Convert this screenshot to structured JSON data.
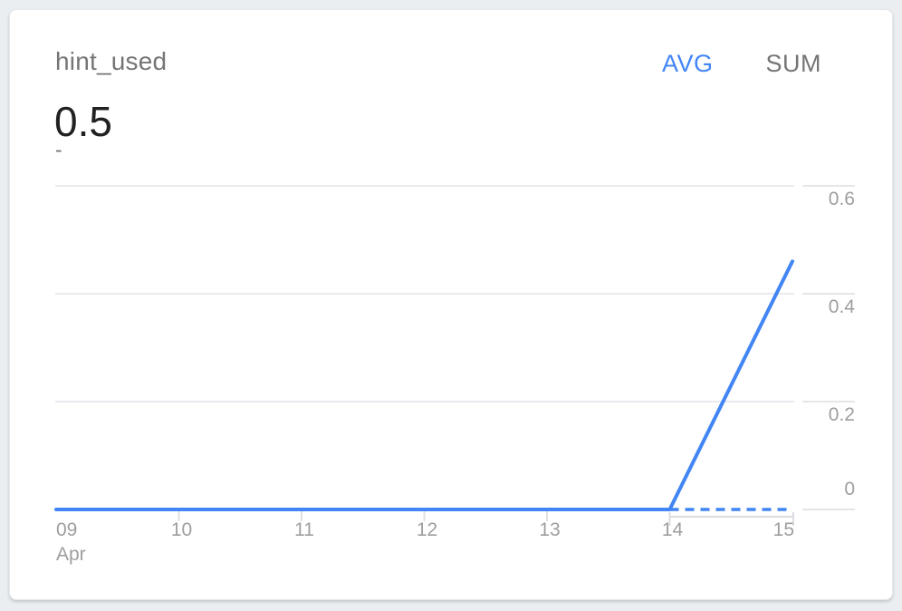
{
  "card": {
    "title": "hint_used",
    "value": "0.5",
    "delta_placeholder": "-",
    "toggle": {
      "avg_label": "AVG",
      "sum_label": "SUM",
      "active": "AVG"
    }
  },
  "colors": {
    "accent_blue": "#4285f4",
    "line_blue": "#4285f4",
    "grid": "#e8eaed",
    "right_tick": "#e4e6e8",
    "axis_tick": "#dadce0",
    "axis_label": "#9e9e9e",
    "title_gray": "#757575",
    "value_dark": "#212121",
    "card_bg": "#ffffff",
    "page_bg": "#eaeef1"
  },
  "chart_data": {
    "type": "line",
    "title": "hint_used",
    "x": [
      "09",
      "10",
      "11",
      "12",
      "13",
      "14",
      "15"
    ],
    "x_month_label": "Apr",
    "series": [
      {
        "name": "hint_used (AVG)",
        "style": "solid",
        "values": [
          0,
          0,
          0,
          0,
          0,
          0,
          0.46
        ]
      }
    ],
    "dashed_segment": {
      "from_x": "14",
      "to_x": "15",
      "value": 0
    },
    "ylim": [
      0,
      0.6
    ],
    "yticks": [
      0,
      0.2,
      0.4,
      0.6
    ],
    "ytick_labels": [
      "0",
      "0.2",
      "0.4",
      "0.6"
    ],
    "xlabel": "",
    "ylabel": "",
    "legend": "none",
    "grid": "horizontal",
    "y_axis_side": "right"
  }
}
